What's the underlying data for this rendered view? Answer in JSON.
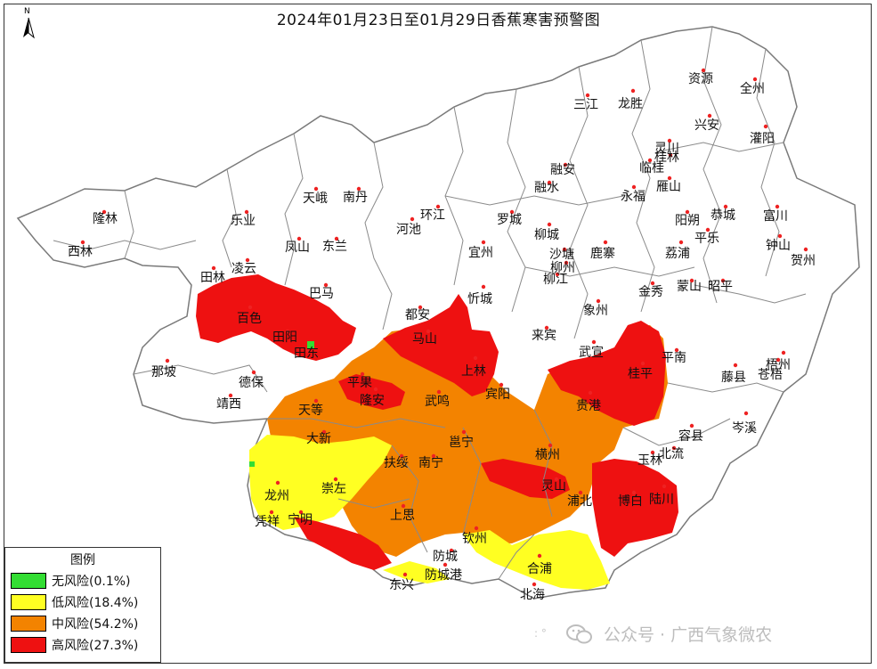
{
  "title": "2024年01月23日至01月29日香蕉寒害预警图",
  "north_arrow": {
    "letter": "N",
    "icon": "north-arrow-icon"
  },
  "colors": {
    "none": "#33dd33",
    "low": "#ffff22",
    "mid": "#f38300",
    "high": "#ee1111",
    "boundary": "#888888",
    "city_dot": "#ee2222"
  },
  "legend": {
    "title": "图例",
    "items": [
      {
        "label": "无风险(0.1%)",
        "color": "#33dd33"
      },
      {
        "label": "低风险(18.4%)",
        "color": "#ffff22"
      },
      {
        "label": "中风险(54.2%)",
        "color": "#f38300"
      },
      {
        "label": "高风险(27.3%)",
        "color": "#ee1111"
      }
    ]
  },
  "cities": [
    "资源",
    "全州",
    "三江",
    "龙胜",
    "兴安",
    "灌阳",
    "灵川",
    "桂林",
    "临桂",
    "雁山",
    "融安",
    "融水",
    "永福",
    "天峨",
    "南丹",
    "隆林",
    "乐业",
    "环江",
    "罗城",
    "阳朔",
    "恭城",
    "富川",
    "西林",
    "凤山",
    "东兰",
    "河池",
    "柳城",
    "宜州",
    "鹿寨",
    "荔浦",
    "平乐",
    "钟山",
    "贺州",
    "田林",
    "凌云",
    "巴马",
    "沙塘",
    "柳州",
    "柳江",
    "金秀",
    "蒙山",
    "昭平",
    "百色",
    "都安",
    "忻城",
    "象州",
    "田阳",
    "马山",
    "来宾",
    "武宣",
    "平南",
    "那坡",
    "田东",
    "上林",
    "藤县",
    "苍梧",
    "梧州",
    "德保",
    "平果",
    "隆安",
    "宾阳",
    "贵港",
    "桂平",
    "靖西",
    "天等",
    "武鸣",
    "岑溪",
    "容县",
    "大新",
    "邕宁",
    "横州",
    "北流",
    "玉林",
    "扶绥",
    "南宁",
    "龙州",
    "崇左",
    "灵山",
    "浦北",
    "博白",
    "陆川",
    "凭祥",
    "宁明",
    "上思",
    "钦州",
    "防城",
    "防城港",
    "东兴",
    "合浦",
    "北海"
  ],
  "watermark": {
    "text": "公众号 · 广西气象微农",
    "icon": "wechat-icon"
  }
}
